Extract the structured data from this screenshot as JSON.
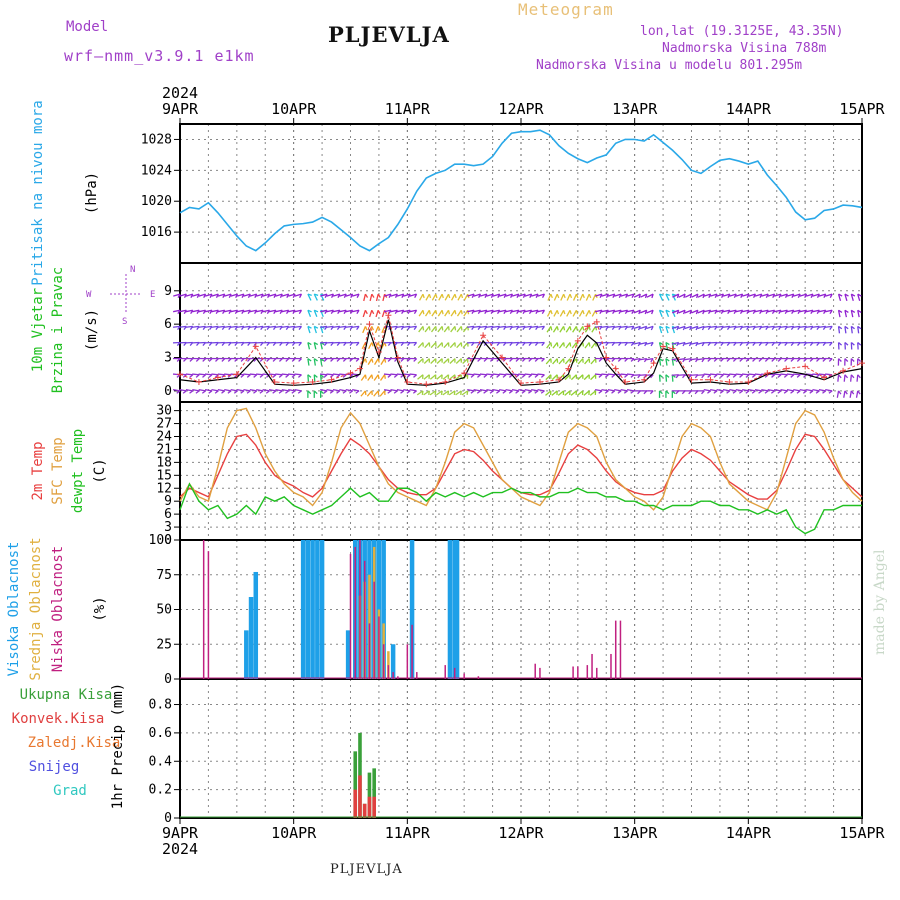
{
  "header": {
    "model_label": "Model",
    "model_name": "wrf—nmm_v3.9.1  e1km",
    "title": "PLJEVLJA",
    "meteogram_label": "Meteogram",
    "lonlat": "lon,lat (19.3125E, 43.35N)",
    "elevation": "Nadmorska Visina 788m",
    "model_elevation": "Nadmorska Visina u modelu 801.295m",
    "footer_station": "PLJEVLJA",
    "credit": "made by Angel"
  },
  "colors": {
    "pressure": "#2aa8e8",
    "temp2m": "#e84040",
    "sfc_temp": "#e0a040",
    "dewpoint": "#20c020",
    "high_cloud": "#1ea0e8",
    "mid_cloud": "#e0b040",
    "low_cloud": "#c02080",
    "total_precip": "#3aa03a",
    "conv_precip": "#e04040",
    "frozen_precip": "#e87830",
    "snow": "#5050e0",
    "graupel": "#30c8c0",
    "axis_label_purple": "#a040c8"
  },
  "chart_data": [
    {
      "type": "line",
      "name": "pressure",
      "ylabel_left": "Pritisak na nivou mora",
      "ylabel_unit": "(hPa)",
      "x_unit": "hours since 9APR 00UTC",
      "xlim": [
        0,
        144
      ],
      "ylim": [
        1012,
        1030
      ],
      "yticks": [
        1016,
        1020,
        1024,
        1028
      ],
      "x_ticks": [
        "9APR",
        "10APR",
        "11APR",
        "12APR",
        "13APR",
        "14APR",
        "15APR"
      ],
      "year": "2024",
      "x": [
        0,
        2,
        4,
        6,
        8,
        10,
        12,
        14,
        16,
        18,
        20,
        22,
        24,
        26,
        28,
        30,
        32,
        34,
        36,
        38,
        40,
        42,
        44,
        46,
        48,
        50,
        52,
        54,
        56,
        58,
        60,
        62,
        64,
        66,
        68,
        70,
        72,
        74,
        76,
        78,
        80,
        82,
        84,
        86,
        88,
        90,
        92,
        94,
        96,
        98,
        100,
        102,
        104,
        106,
        108,
        110,
        112,
        114,
        116,
        118,
        120,
        122,
        124,
        126,
        128,
        130,
        132,
        134,
        136,
        138,
        140,
        142,
        144
      ],
      "values": [
        1018.5,
        1019.2,
        1019.0,
        1019.8,
        1018.5,
        1017.0,
        1015.5,
        1014.2,
        1013.6,
        1014.6,
        1015.8,
        1016.8,
        1017.0,
        1017.1,
        1017.3,
        1017.9,
        1017.3,
        1016.3,
        1015.3,
        1014.2,
        1013.6,
        1014.5,
        1015.3,
        1017.0,
        1019.0,
        1021.3,
        1023.0,
        1023.6,
        1024.0,
        1024.8,
        1024.8,
        1024.6,
        1024.8,
        1025.8,
        1027.5,
        1028.8,
        1029.0,
        1029.0,
        1029.2,
        1028.6,
        1027.2,
        1026.2,
        1025.5,
        1025.0,
        1025.6,
        1026.0,
        1027.5,
        1028.0,
        1028.0,
        1027.8,
        1028.6,
        1027.6,
        1026.6,
        1025.4,
        1024.0,
        1023.6,
        1024.5,
        1025.3,
        1025.5,
        1025.2,
        1024.8,
        1025.2,
        1023.4,
        1022.0,
        1020.5,
        1018.6,
        1017.6,
        1017.8,
        1018.8,
        1019.0,
        1019.5,
        1019.4,
        1019.2
      ]
    },
    {
      "type": "line",
      "name": "wind",
      "ylabel_left": [
        "10m Vjetar",
        "Brzina i Pravac"
      ],
      "ylabel_unit": "(m/s)",
      "compass": {
        "north": "N",
        "west": "W",
        "east": "E",
        "south": "S"
      },
      "xlim": [
        0,
        144
      ],
      "ylim": [
        -1,
        11.5
      ],
      "yticks": [
        0,
        3,
        6,
        9
      ],
      "x_ticks": [
        "9APR",
        "10APR",
        "11APR",
        "12APR",
        "13APR",
        "14APR",
        "15APR"
      ],
      "x": [
        0,
        4,
        8,
        12,
        16,
        20,
        24,
        28,
        32,
        36,
        38,
        40,
        42,
        44,
        46,
        48,
        52,
        56,
        60,
        64,
        68,
        72,
        76,
        80,
        82,
        84,
        86,
        88,
        90,
        92,
        94,
        98,
        100,
        102,
        104,
        108,
        112,
        116,
        120,
        124,
        128,
        132,
        136,
        140,
        144
      ],
      "speed_series": {
        "name": "wind speed",
        "values": [
          1.0,
          0.8,
          1.0,
          1.2,
          3.0,
          0.6,
          0.5,
          0.6,
          0.8,
          1.2,
          1.5,
          5.4,
          3.0,
          6.4,
          2.6,
          0.6,
          0.5,
          0.7,
          1.2,
          4.5,
          2.5,
          0.5,
          0.6,
          0.8,
          1.5,
          3.8,
          5.0,
          4.3,
          2.5,
          1.5,
          0.6,
          0.8,
          1.6,
          3.8,
          3.6,
          0.7,
          0.8,
          0.6,
          0.7,
          1.5,
          1.8,
          1.5,
          1.0,
          1.7,
          2.0
        ]
      },
      "gust_series": {
        "name": "gust",
        "values": [
          1.5,
          0.8,
          1.2,
          1.5,
          4.0,
          0.8,
          0.7,
          0.8,
          1.0,
          1.6,
          2.0,
          6.0,
          3.5,
          6.8,
          3.0,
          0.8,
          0.6,
          0.8,
          1.6,
          5.0,
          3.0,
          0.7,
          0.8,
          1.0,
          2.0,
          4.5,
          5.8,
          6.2,
          3.0,
          2.0,
          0.8,
          1.0,
          2.5,
          4.0,
          3.8,
          1.0,
          1.0,
          0.8,
          0.8,
          1.6,
          2.0,
          2.2,
          1.2,
          1.8,
          2.5
        ]
      }
    },
    {
      "type": "line",
      "name": "temperature",
      "ylabel_left": [
        "2m Temp",
        "SFC Temp",
        "dewpt Temp"
      ],
      "ylabel_unit": "(C)",
      "xlim": [
        0,
        144
      ],
      "ylim": [
        0,
        32
      ],
      "yticks": [
        0,
        3,
        6,
        9,
        12,
        15,
        18,
        21,
        24,
        27,
        30
      ],
      "x_ticks": [
        "9APR",
        "10APR",
        "11APR",
        "12APR",
        "13APR",
        "14APR",
        "15APR"
      ],
      "x": [
        0,
        2,
        4,
        6,
        8,
        10,
        12,
        14,
        16,
        18,
        20,
        22,
        24,
        26,
        28,
        30,
        32,
        34,
        36,
        38,
        40,
        42,
        44,
        46,
        48,
        50,
        52,
        54,
        56,
        58,
        60,
        62,
        64,
        66,
        68,
        70,
        72,
        74,
        76,
        78,
        80,
        82,
        84,
        86,
        88,
        90,
        92,
        94,
        96,
        98,
        100,
        102,
        104,
        106,
        108,
        110,
        112,
        114,
        116,
        118,
        120,
        122,
        124,
        126,
        128,
        130,
        132,
        134,
        136,
        138,
        140,
        142,
        144
      ],
      "series": [
        {
          "name": "2m Temp",
          "values": [
            10,
            12,
            11,
            10,
            15,
            20,
            24,
            24.5,
            22,
            18,
            15,
            13.5,
            12.5,
            11,
            10,
            12,
            16,
            20,
            23.5,
            22,
            20,
            17,
            14,
            12,
            11,
            10.5,
            10.5,
            12,
            16,
            20,
            21,
            20.5,
            18.5,
            16,
            14,
            12,
            11,
            10.5,
            10.5,
            11.5,
            15.5,
            20,
            22,
            21,
            19,
            16,
            13.5,
            12,
            11,
            10.5,
            10.5,
            11.5,
            16,
            19,
            21,
            20,
            18.5,
            16,
            13.5,
            12,
            10.5,
            9.5,
            9.5,
            11.5,
            16,
            21,
            24.5,
            24,
            21,
            17.5,
            14,
            12,
            10
          ]
        },
        {
          "name": "SFC Temp",
          "values": [
            9,
            13,
            10,
            9,
            17,
            26,
            30,
            30.5,
            26,
            20,
            16,
            13,
            11,
            10,
            8,
            11,
            18,
            26,
            29.5,
            27,
            22,
            17,
            13,
            11,
            10,
            9,
            8,
            12,
            18,
            25,
            27,
            26,
            22,
            18,
            14,
            12,
            10,
            9,
            8,
            11,
            18,
            25,
            27,
            26,
            24,
            18,
            14,
            12,
            10,
            9,
            7,
            10,
            17,
            24,
            27,
            26,
            24,
            18,
            13,
            11,
            9,
            8,
            7,
            11,
            19,
            27,
            30,
            29,
            25,
            19,
            14,
            11,
            9
          ]
        },
        {
          "name": "dewpt Temp",
          "values": [
            7,
            13,
            9,
            7,
            8,
            5,
            6,
            8,
            6,
            10,
            9,
            10,
            8,
            7,
            6,
            7,
            8,
            10,
            12,
            10,
            11,
            9,
            9,
            12,
            12,
            11,
            9,
            11,
            10,
            11,
            10,
            11,
            10,
            11,
            11,
            12,
            11,
            11,
            10,
            10,
            11,
            11,
            12,
            11,
            11,
            10,
            10,
            9,
            9,
            8,
            8,
            7,
            8,
            8,
            8,
            9,
            9,
            8,
            8,
            7,
            7,
            6,
            7,
            6,
            7,
            3,
            1.5,
            2.5,
            7,
            7,
            8,
            8,
            8
          ]
        }
      ]
    },
    {
      "type": "bar",
      "name": "cloud cover",
      "ylabel_left": [
        "Visoka Oblacnost",
        "Srednja Oblacnost",
        "Niska Oblacnost"
      ],
      "ylabel_unit": "(%)",
      "xlim": [
        0,
        144
      ],
      "ylim": [
        0,
        100
      ],
      "yticks": [
        0,
        25,
        50,
        75,
        100
      ],
      "x_ticks": [
        "9APR",
        "10APR",
        "11APR",
        "12APR",
        "13APR",
        "14APR",
        "15APR"
      ],
      "series": [
        {
          "name": "Visoka Oblacnost",
          "x": [
            14,
            15,
            16,
            26,
            27,
            28,
            29,
            30,
            35.5,
            37,
            38,
            39,
            40,
            41,
            42,
            43,
            45,
            49,
            57,
            58,
            58.5
          ],
          "values": [
            35,
            59,
            77,
            100,
            100,
            100,
            100,
            100,
            35,
            100,
            100,
            100,
            100,
            100,
            100,
            100,
            25,
            100,
            100,
            100,
            100
          ]
        },
        {
          "name": "Srednja Oblacnost",
          "x": [
            38,
            39,
            40,
            41,
            42,
            43,
            44
          ],
          "values": [
            60,
            70,
            75,
            95,
            50,
            40,
            20
          ]
        },
        {
          "name": "Niska Oblacnost",
          "x": [
            5,
            6,
            36,
            37,
            38,
            39,
            40,
            41,
            42,
            43,
            44,
            45,
            46,
            48,
            49,
            50,
            56,
            58,
            60,
            63,
            75,
            76,
            83,
            84,
            86,
            87,
            88,
            91,
            92,
            93
          ],
          "values": [
            100,
            92,
            90,
            95,
            100,
            85,
            40,
            70,
            45,
            25,
            10,
            5,
            2,
            25,
            39,
            5,
            10,
            8,
            4,
            2,
            11,
            8,
            9,
            9,
            10,
            18,
            8,
            18,
            42,
            42
          ]
        }
      ]
    },
    {
      "type": "bar",
      "name": "precipitation",
      "ylabel_left": [
        "Ukupna Kisa",
        "Konvek.Kisa",
        "Zaledj.Kisa",
        "Snijeg",
        "Grad"
      ],
      "ylabel_unit": "1hr Precip (mm)",
      "xlim": [
        0,
        144
      ],
      "ylim": [
        0,
        0.98
      ],
      "yticks": [
        0,
        0.2,
        0.4,
        0.6,
        0.8
      ],
      "x_ticks": [
        "9APR",
        "10APR",
        "11APR",
        "12APR",
        "13APR",
        "14APR",
        "15APR"
      ],
      "year": "2024",
      "series": [
        {
          "name": "Ukupna Kisa",
          "x": [
            37,
            38,
            39,
            40,
            41
          ],
          "values": [
            0.47,
            0.6,
            0.1,
            0.32,
            0.35
          ]
        },
        {
          "name": "Konvek.Kisa",
          "x": [
            37,
            38,
            39,
            40,
            41
          ],
          "values": [
            0.2,
            0.3,
            0.1,
            0.15,
            0.15
          ]
        }
      ]
    }
  ]
}
